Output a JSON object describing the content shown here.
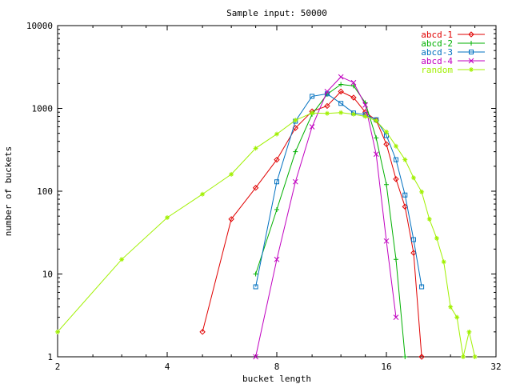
{
  "chart_data": {
    "type": "line",
    "title": "Sample input: 50000",
    "xlabel": "bucket length",
    "ylabel": "number of buckets",
    "x_scale": "log2",
    "y_scale": "log10",
    "xlim": [
      2,
      32
    ],
    "ylim": [
      1,
      10000
    ],
    "x_ticks": [
      2,
      4,
      8,
      16,
      32
    ],
    "x_tick_labels": [
      "2",
      "4",
      "8",
      "16",
      "32"
    ],
    "y_ticks": [
      1,
      10,
      100,
      1000,
      10000
    ],
    "y_tick_labels": [
      "1",
      "10",
      "100",
      "1000",
      "10000"
    ],
    "grid": false,
    "legend_position": "top-right",
    "series": [
      {
        "name": "abcd-1",
        "color": "#e00000",
        "marker": "diamond",
        "points": [
          [
            5,
            2
          ],
          [
            6,
            46
          ],
          [
            7,
            110
          ],
          [
            8,
            240
          ],
          [
            9,
            580
          ],
          [
            10,
            920
          ],
          [
            11,
            1070
          ],
          [
            12,
            1600
          ],
          [
            13,
            1350
          ],
          [
            14,
            900
          ],
          [
            15,
            720
          ],
          [
            16,
            370
          ],
          [
            17,
            140
          ],
          [
            18,
            65
          ],
          [
            19,
            18
          ],
          [
            20,
            1
          ]
        ]
      },
      {
        "name": "abcd-2",
        "color": "#00b000",
        "marker": "plus",
        "points": [
          [
            7,
            10
          ],
          [
            8,
            60
          ],
          [
            9,
            300
          ],
          [
            10,
            850
          ],
          [
            11,
            1480
          ],
          [
            12,
            1950
          ],
          [
            13,
            1870
          ],
          [
            14,
            1170
          ],
          [
            15,
            440
          ],
          [
            16,
            120
          ],
          [
            17,
            15
          ],
          [
            18,
            1
          ]
        ]
      },
      {
        "name": "abcd-3",
        "color": "#0070c0",
        "marker": "square",
        "points": [
          [
            7,
            7
          ],
          [
            8,
            130
          ],
          [
            9,
            700
          ],
          [
            10,
            1400
          ],
          [
            11,
            1500
          ],
          [
            12,
            1150
          ],
          [
            13,
            880
          ],
          [
            14,
            840
          ],
          [
            15,
            730
          ],
          [
            16,
            470
          ],
          [
            17,
            240
          ],
          [
            18,
            90
          ],
          [
            19,
            26
          ],
          [
            20,
            7
          ]
        ]
      },
      {
        "name": "abcd-4",
        "color": "#c000c0",
        "marker": "cross",
        "points": [
          [
            7,
            1
          ],
          [
            8,
            15
          ],
          [
            9,
            130
          ],
          [
            10,
            600
          ],
          [
            11,
            1600
          ],
          [
            12,
            2400
          ],
          [
            13,
            2050
          ],
          [
            14,
            1100
          ],
          [
            15,
            280
          ],
          [
            16,
            25
          ],
          [
            17,
            3
          ]
        ]
      },
      {
        "name": "random",
        "color": "#a0f000",
        "marker": "star",
        "points": [
          [
            2,
            2
          ],
          [
            3,
            15
          ],
          [
            4,
            48
          ],
          [
            5,
            92
          ],
          [
            6,
            160
          ],
          [
            7,
            330
          ],
          [
            8,
            490
          ],
          [
            9,
            720
          ],
          [
            10,
            880
          ],
          [
            11,
            870
          ],
          [
            12,
            890
          ],
          [
            13,
            850
          ],
          [
            14,
            800
          ],
          [
            15,
            710
          ],
          [
            16,
            520
          ],
          [
            17,
            350
          ],
          [
            18,
            240
          ],
          [
            19,
            145
          ],
          [
            20,
            98
          ],
          [
            21,
            46
          ],
          [
            22,
            27
          ],
          [
            23,
            14
          ],
          [
            24,
            4
          ],
          [
            25,
            3
          ],
          [
            26,
            1
          ],
          [
            27,
            2
          ],
          [
            28,
            1
          ]
        ]
      }
    ]
  }
}
